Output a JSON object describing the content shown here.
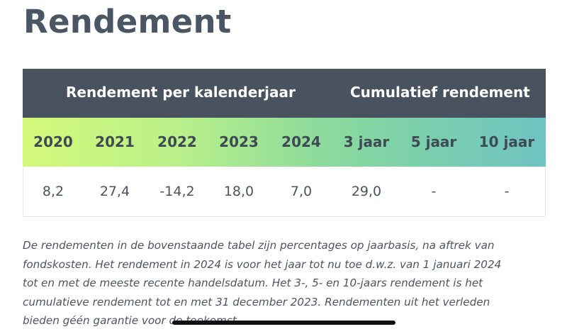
{
  "page": {
    "title": "Rendement"
  },
  "table": {
    "group_headers": [
      "Rendement per kalenderjaar",
      "Cumulatief rendement"
    ],
    "columns": [
      "2020",
      "2021",
      "2022",
      "2023",
      "2024",
      "3 jaar",
      "5 jaar",
      "10 jaar"
    ],
    "values": [
      "8,2",
      "27,4",
      "-14,2",
      "18,0",
      "7,0",
      "29,0",
      "-",
      "-"
    ]
  },
  "footnote": {
    "lines": [
      "De rendementen in de bovenstaande tabel zijn percentages op jaarbasis, na aftrek van",
      "fondskosten. Het rendement in 2024 is voor het jaar tot nu toe d.w.z. van 1 januari 2024",
      "tot en met de meeste recente handelsdatum. Het 3-, 5- en 10-jaars rendement is het",
      "cumulatieve rendement tot en met 31 december 2023. Rendementen uit het verleden",
      "bieden géén garantie voor de toekomst."
    ]
  },
  "colors": {
    "header_background": "#48535f",
    "header_text": "#ffffff",
    "gradient_start": "#d4f97a",
    "gradient_end": "#6fc3c2",
    "title_text": "#4a5663"
  }
}
